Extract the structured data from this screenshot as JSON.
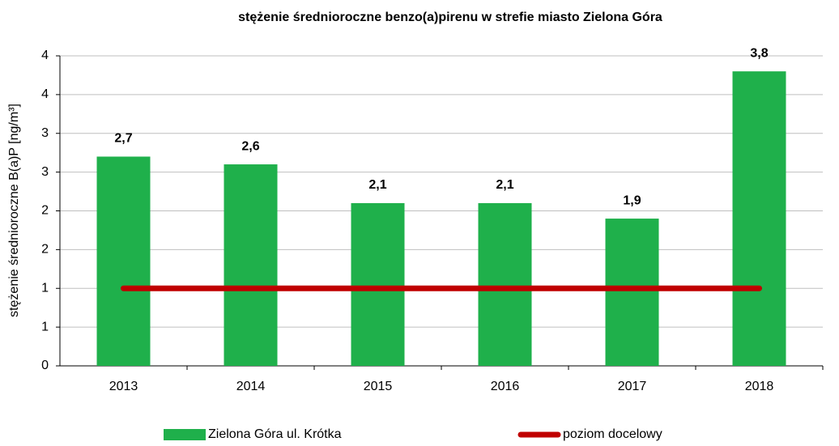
{
  "chart_data": {
    "type": "bar",
    "title": "stężenie średnioroczne benzo(a)pirenu w strefie miasto  Zielona Góra",
    "y_axis_label": "stężenie średnioroczne B(a)P [ng/m³]",
    "categories": [
      "2013",
      "2014",
      "2015",
      "2016",
      "2017",
      "2018"
    ],
    "series": [
      {
        "name": "Zielona Góra ul. Krótka",
        "type": "bar",
        "color": "#1fb04b",
        "values": [
          2.7,
          2.6,
          2.1,
          2.1,
          1.9,
          3.8
        ],
        "value_labels": [
          "2,7",
          "2,6",
          "2,1",
          "2,1",
          "1,9",
          "3,8"
        ]
      },
      {
        "name": "poziom docelowy",
        "type": "line",
        "color": "#c00000",
        "values": [
          1,
          1,
          1,
          1,
          1,
          1
        ]
      }
    ],
    "ylim": [
      0,
      4
    ],
    "yticks": [
      0,
      {
        "value": 0.5,
        "label": "1"
      },
      1,
      {
        "value": 1.5,
        "label": "2"
      },
      2,
      {
        "value": 2.5,
        "label": "3"
      },
      3,
      {
        "value": 3.5,
        "label": "4"
      },
      4
    ],
    "grid": true,
    "legend": "bottom"
  }
}
